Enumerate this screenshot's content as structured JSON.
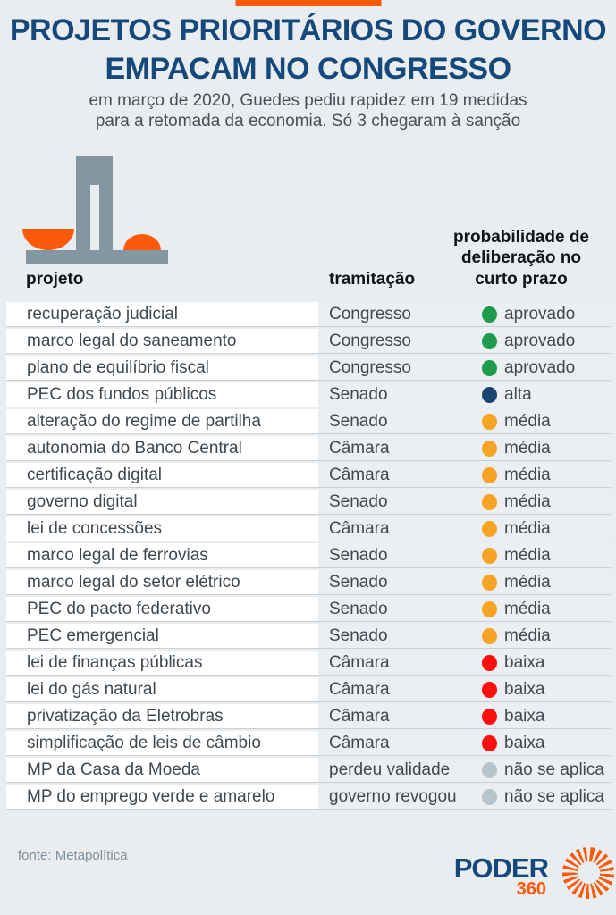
{
  "theme": {
    "page_bg": "#e9edf0",
    "navy": "#15497b",
    "orange": "#fb5a0d",
    "icon_gray": "#8496a1",
    "title_text": "#15497b",
    "subtitle_text": "#46505a",
    "header_text": "#0f1418",
    "row_text": "#3f4952",
    "row_bg": "#eceff2",
    "cell_bg": "#ffffff",
    "row_line": "#c8d1d7",
    "source_text": "#7e8f9c"
  },
  "header": {
    "title_line1": "PROJETOS PRIORITÁRIOS DO GOVERNO",
    "title_line2": "EMPACAM NO CONGRESSO",
    "subtitle_line1": "em março de 2020, Guedes pediu rapidez em 19 medidas",
    "subtitle_line2": "para a retomada da economia. Só 3 chegaram à sanção"
  },
  "columns_display": {
    "probability_multiline": "probabilidade de\ndeliberação no\ncurto prazo"
  },
  "chart_data": {
    "type": "table",
    "title": "PROJETOS PRIORITÁRIOS DO GOVERNO EMPACAM NO CONGRESSO",
    "columns": [
      "projeto",
      "tramitação",
      "probabilidade de deliberação no curto prazo"
    ],
    "dot_colors": {
      "green": "#1f9b4e",
      "navy": "#1a4573",
      "orange": "#f6a326",
      "red": "#fb100d",
      "gray": "#b7c4cb"
    },
    "rows": [
      {
        "project": "recuperação judicial",
        "status": "Congresso",
        "probability": "aprovado",
        "color": "green"
      },
      {
        "project": "marco legal do saneamento",
        "status": "Congresso",
        "probability": "aprovado",
        "color": "green"
      },
      {
        "project": "plano de equilíbrio fiscal",
        "status": "Congresso",
        "probability": "aprovado",
        "color": "green"
      },
      {
        "project": "PEC dos fundos públicos",
        "status": "Senado",
        "probability": "alta",
        "color": "navy"
      },
      {
        "project": "alteração do regime de partilha",
        "status": "Senado",
        "probability": "média",
        "color": "orange"
      },
      {
        "project": "autonomia do Banco Central",
        "status": "Câmara",
        "probability": "média",
        "color": "orange"
      },
      {
        "project": "certificação digital",
        "status": "Câmara",
        "probability": "média",
        "color": "orange"
      },
      {
        "project": "governo digital",
        "status": "Senado",
        "probability": "média",
        "color": "orange"
      },
      {
        "project": "lei de concessões",
        "status": "Câmara",
        "probability": "média",
        "color": "orange"
      },
      {
        "project": "marco legal de ferrovias",
        "status": "Senado",
        "probability": "média",
        "color": "orange"
      },
      {
        "project": "marco legal do setor elétrico",
        "status": "Senado",
        "probability": "média",
        "color": "orange"
      },
      {
        "project": "PEC do pacto federativo",
        "status": "Senado",
        "probability": "média",
        "color": "orange"
      },
      {
        "project": "PEC emergencial",
        "status": "Senado",
        "probability": "média",
        "color": "orange"
      },
      {
        "project": "lei de finanças públicas",
        "status": "Câmara",
        "probability": "baixa",
        "color": "red"
      },
      {
        "project": "lei do gás natural",
        "status": "Câmara",
        "probability": "baixa",
        "color": "red"
      },
      {
        "project": "privatização da Eletrobras",
        "status": "Câmara",
        "probability": "baixa",
        "color": "red"
      },
      {
        "project": "simplificação de leis de câmbio",
        "status": "Câmara",
        "probability": "baixa",
        "color": "red"
      },
      {
        "project": "MP da Casa da Moeda",
        "status": "perdeu validade",
        "probability": "não se aplica",
        "color": "gray"
      },
      {
        "project": "MP do emprego verde e amarelo",
        "status": "governo revogou",
        "probability": "não se aplica",
        "color": "gray"
      }
    ]
  },
  "footer": {
    "source": "fonte: Metapolítica",
    "logo_text": "PODER",
    "logo_number": "360"
  }
}
